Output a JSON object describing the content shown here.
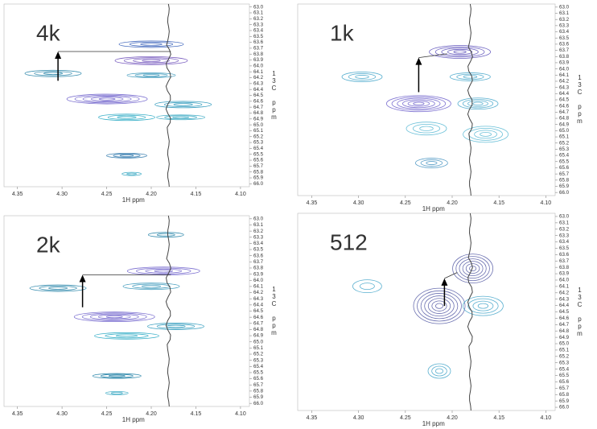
{
  "chart_data": [
    {
      "type": "contour",
      "annotation": "4k",
      "x_label": "1H ppm",
      "y_label": "13C ppm",
      "xlim": [
        4.365,
        4.09
      ],
      "ylim": [
        62.95,
        66.05
      ],
      "xticks": [
        4.35,
        {
          "value": 4.3,
          "label": "4.30"
        },
        4.25,
        {
          "value": 4.2,
          "label": "4.20"
        },
        4.15,
        {
          "value": 4.1,
          "label": "4.10"
        }
      ],
      "yticks": [
        {
          "value": 63,
          "label": "63.0"
        },
        63.1,
        63.2,
        63.3,
        63.4,
        63.5,
        63.6,
        63.7,
        63.8,
        63.9,
        {
          "value": 64,
          "label": "64.0"
        },
        64.1,
        64.2,
        64.3,
        64.4,
        64.5,
        64.6,
        64.7,
        64.8,
        64.9,
        {
          "value": 65,
          "label": "65.0"
        },
        65.1,
        65.2,
        65.3,
        65.4,
        65.5,
        65.6,
        65.7,
        65.8,
        65.9,
        {
          "value": 66,
          "label": "66.0"
        }
      ]
    },
    {
      "type": "contour",
      "annotation": "1k",
      "x_label": "1H ppm",
      "y_label": "13C ppm",
      "xlim": [
        4.365,
        4.09
      ],
      "ylim": [
        62.95,
        66.05
      ],
      "xticks": [
        4.35,
        {
          "value": 4.3,
          "label": "4.30"
        },
        4.25,
        {
          "value": 4.2,
          "label": "4.20"
        },
        4.15,
        {
          "value": 4.1,
          "label": "4.10"
        }
      ],
      "yticks": [
        {
          "value": 63,
          "label": "63.0"
        },
        63.1,
        63.2,
        63.3,
        63.4,
        63.5,
        63.6,
        63.7,
        63.8,
        63.9,
        {
          "value": 64,
          "label": "64.0"
        },
        64.1,
        64.2,
        64.3,
        64.4,
        64.5,
        64.6,
        64.7,
        64.8,
        64.9,
        {
          "value": 65,
          "label": "65.0"
        },
        65.1,
        65.2,
        65.3,
        65.4,
        65.5,
        65.6,
        65.7,
        65.8,
        65.9,
        {
          "value": 66,
          "label": "66.0"
        }
      ]
    },
    {
      "type": "contour",
      "annotation": "2k",
      "x_label": "1H ppm",
      "y_label": "13C ppm",
      "xlim": [
        4.365,
        4.09
      ],
      "ylim": [
        62.95,
        66.05
      ],
      "xticks": [
        4.35,
        {
          "value": 4.3,
          "label": "4.30"
        },
        4.25,
        {
          "value": 4.2,
          "label": "4.20"
        },
        4.15,
        {
          "value": 4.1,
          "label": "4.10"
        }
      ],
      "yticks": [
        {
          "value": 63,
          "label": "63.0"
        },
        63.1,
        63.2,
        63.3,
        63.4,
        63.5,
        63.6,
        63.7,
        63.8,
        63.9,
        {
          "value": 64,
          "label": "64.0"
        },
        64.1,
        64.2,
        64.3,
        64.4,
        64.5,
        64.6,
        64.7,
        64.8,
        64.9,
        {
          "value": 65,
          "label": "65.0"
        },
        65.1,
        65.2,
        65.3,
        65.4,
        65.5,
        65.6,
        65.7,
        65.8,
        65.9,
        {
          "value": 66,
          "label": "66.0"
        }
      ]
    },
    {
      "type": "contour",
      "annotation": "512",
      "x_label": "1H ppm",
      "y_label": "13C ppm",
      "xlim": [
        4.365,
        4.09
      ],
      "ylim": [
        62.95,
        66.05
      ],
      "xticks": [
        4.35,
        {
          "value": 4.3,
          "label": "4.30"
        },
        4.25,
        {
          "value": 4.2,
          "label": "4.20"
        },
        4.15,
        {
          "value": 4.1,
          "label": "4.10"
        }
      ],
      "yticks": [
        {
          "value": 63,
          "label": "63.0"
        },
        63.1,
        63.2,
        63.3,
        63.4,
        63.5,
        63.6,
        63.7,
        63.8,
        63.9,
        {
          "value": 64,
          "label": "64.0"
        },
        64.1,
        64.2,
        64.3,
        64.4,
        64.5,
        64.6,
        64.7,
        64.8,
        64.9,
        {
          "value": 65,
          "label": "65.0"
        },
        65.1,
        65.2,
        65.3,
        65.4,
        65.5,
        65.6,
        65.7,
        65.8,
        65.9,
        {
          "value": 66,
          "label": "66.0"
        }
      ]
    }
  ]
}
